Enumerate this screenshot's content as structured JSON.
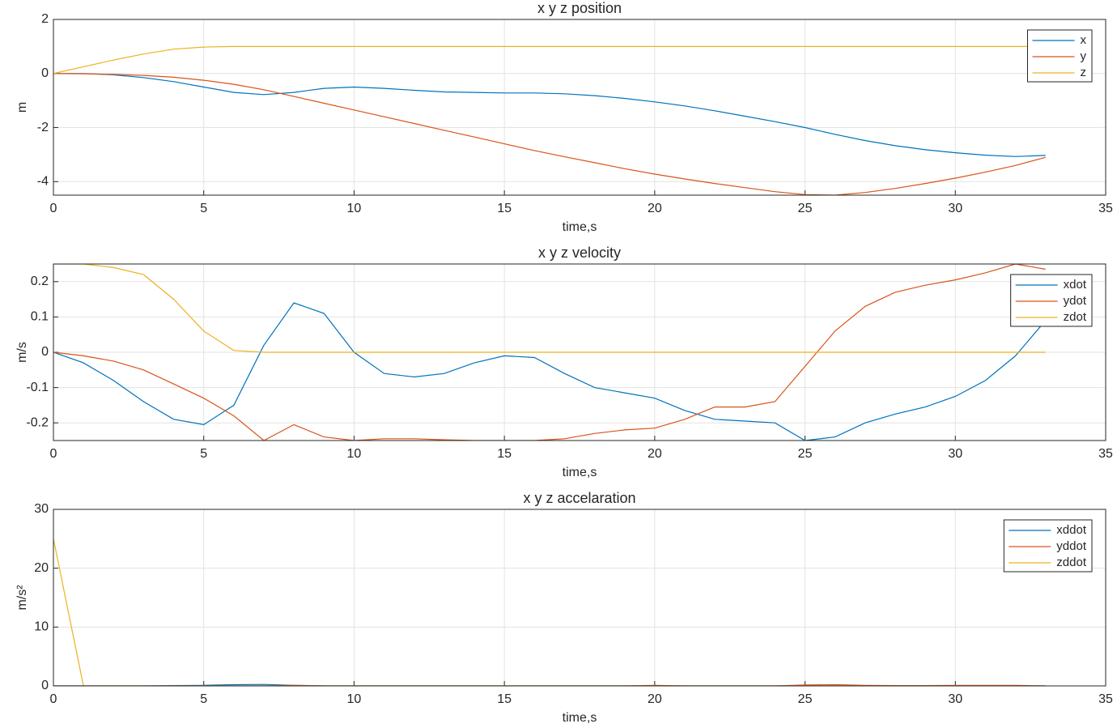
{
  "chart_data": [
    {
      "type": "line",
      "title": "x y z position",
      "xlabel": "time,s",
      "ylabel": "m",
      "x": [
        0,
        1,
        2,
        3,
        4,
        5,
        6,
        7,
        8,
        9,
        10,
        11,
        12,
        13,
        14,
        15,
        16,
        17,
        18,
        19,
        20,
        21,
        22,
        23,
        24,
        25,
        26,
        27,
        28,
        29,
        30,
        31,
        32,
        33
      ],
      "series": [
        {
          "name": "x",
          "color": "#0072BD",
          "values": [
            0,
            0,
            -0.05,
            -0.15,
            -0.3,
            -0.5,
            -0.7,
            -0.78,
            -0.7,
            -0.55,
            -0.5,
            -0.55,
            -0.62,
            -0.68,
            -0.7,
            -0.72,
            -0.72,
            -0.75,
            -0.82,
            -0.92,
            -1.05,
            -1.2,
            -1.38,
            -1.58,
            -1.78,
            -2.0,
            -2.25,
            -2.48,
            -2.67,
            -2.82,
            -2.93,
            -3.02,
            -3.07,
            -3.03
          ]
        },
        {
          "name": "y",
          "color": "#D95319",
          "values": [
            0,
            -0.01,
            -0.03,
            -0.07,
            -0.14,
            -0.25,
            -0.4,
            -0.6,
            -0.85,
            -1.1,
            -1.35,
            -1.6,
            -1.85,
            -2.1,
            -2.35,
            -2.6,
            -2.85,
            -3.08,
            -3.3,
            -3.52,
            -3.72,
            -3.9,
            -4.07,
            -4.22,
            -4.37,
            -4.48,
            -4.5,
            -4.4,
            -4.25,
            -4.07,
            -3.87,
            -3.65,
            -3.4,
            -3.1
          ]
        },
        {
          "name": "z",
          "color": "#EDB120",
          "values": [
            0,
            0.25,
            0.5,
            0.72,
            0.9,
            0.98,
            1,
            1,
            1,
            1,
            1,
            1,
            1,
            1,
            1,
            1,
            1,
            1,
            1,
            1,
            1,
            1,
            1,
            1,
            1,
            1,
            1,
            1,
            1,
            1,
            1,
            1,
            1,
            1
          ]
        }
      ],
      "xlim": [
        0,
        35
      ],
      "xticks": [
        0,
        5,
        10,
        15,
        20,
        25,
        30,
        35
      ],
      "ylim": [
        -4.5,
        2
      ],
      "yticks": [
        -4,
        -2,
        0,
        2
      ],
      "grid": true,
      "legend": "top-right"
    },
    {
      "type": "line",
      "title": "x y z velocity",
      "xlabel": "time,s",
      "ylabel": "m/s",
      "x": [
        0,
        1,
        2,
        3,
        4,
        5,
        6,
        7,
        8,
        9,
        10,
        11,
        12,
        13,
        14,
        15,
        16,
        17,
        18,
        19,
        20,
        21,
        22,
        23,
        24,
        25,
        26,
        27,
        28,
        29,
        30,
        31,
        32,
        33
      ],
      "series": [
        {
          "name": "xdot",
          "color": "#0072BD",
          "values": [
            0,
            -0.03,
            -0.08,
            -0.14,
            -0.19,
            -0.205,
            -0.15,
            0.02,
            0.14,
            0.11,
            0,
            -0.06,
            -0.07,
            -0.06,
            -0.03,
            -0.01,
            -0.015,
            -0.06,
            -0.1,
            -0.115,
            -0.13,
            -0.165,
            -0.19,
            -0.195,
            -0.2,
            -0.25,
            -0.24,
            -0.2,
            -0.175,
            -0.155,
            -0.125,
            -0.08,
            -0.01,
            0.09
          ]
        },
        {
          "name": "ydot",
          "color": "#D95319",
          "values": [
            0,
            -0.01,
            -0.025,
            -0.05,
            -0.09,
            -0.13,
            -0.18,
            -0.25,
            -0.205,
            -0.24,
            -0.25,
            -0.245,
            -0.245,
            -0.248,
            -0.25,
            -0.25,
            -0.25,
            -0.245,
            -0.23,
            -0.22,
            -0.215,
            -0.19,
            -0.155,
            -0.155,
            -0.14,
            -0.04,
            0.06,
            0.13,
            0.17,
            0.19,
            0.205,
            0.225,
            0.25,
            0.235
          ]
        },
        {
          "name": "zdot",
          "color": "#EDB120",
          "values": [
            0.25,
            0.25,
            0.24,
            0.22,
            0.15,
            0.06,
            0.005,
            0,
            0,
            0,
            0,
            0,
            0,
            0,
            0,
            0,
            0,
            0,
            0,
            0,
            0,
            0,
            0,
            0,
            0,
            0,
            0,
            0,
            0,
            0,
            0,
            0,
            0,
            0
          ]
        }
      ],
      "xlim": [
        0,
        35
      ],
      "xticks": [
        0,
        5,
        10,
        15,
        20,
        25,
        30,
        35
      ],
      "ylim": [
        -0.25,
        0.25
      ],
      "yticks": [
        -0.2,
        -0.1,
        0,
        0.1,
        0.2
      ],
      "grid": true,
      "legend": "top-right"
    },
    {
      "type": "line",
      "title": "x y z accelaration",
      "xlabel": "time,s",
      "ylabel": "m/s²",
      "x": [
        0,
        1,
        2,
        3,
        4,
        5,
        6,
        7,
        8,
        9,
        10,
        11,
        12,
        13,
        14,
        15,
        16,
        17,
        18,
        19,
        20,
        21,
        22,
        23,
        24,
        25,
        26,
        27,
        28,
        29,
        30,
        31,
        32,
        33
      ],
      "series": [
        {
          "name": "xddot",
          "color": "#0072BD",
          "values": [
            0,
            0,
            0,
            0,
            0.05,
            0.1,
            0.2,
            0.25,
            0.1,
            0,
            0,
            0,
            0,
            0,
            0,
            0,
            0,
            0,
            0,
            0,
            0,
            0,
            0,
            0,
            0,
            0,
            0,
            0,
            0,
            0,
            0,
            0,
            0,
            0
          ]
        },
        {
          "name": "yddot",
          "color": "#D95319",
          "values": [
            0,
            0,
            0,
            0,
            0,
            0,
            0,
            0,
            0.1,
            0,
            0,
            0,
            0,
            0,
            0,
            0,
            0,
            0,
            0,
            0,
            0.1,
            0,
            0,
            0,
            0,
            0.15,
            0.2,
            0.1,
            0.05,
            0.05,
            0.1,
            0.1,
            0.1,
            0
          ]
        },
        {
          "name": "zddot",
          "color": "#EDB120",
          "values": [
            25,
            0,
            0,
            0,
            0,
            0,
            0,
            0,
            0,
            0,
            0,
            0,
            0,
            0,
            0,
            0,
            0,
            0,
            0,
            0,
            0,
            0,
            0,
            0,
            0,
            0,
            0,
            0,
            0,
            0,
            0,
            0,
            0,
            0
          ]
        }
      ],
      "xlim": [
        0,
        35
      ],
      "xticks": [
        0,
        5,
        10,
        15,
        20,
        25,
        30,
        35
      ],
      "ylim": [
        0,
        30
      ],
      "yticks": [
        0,
        10,
        20,
        30
      ],
      "grid": true,
      "legend": "top-right"
    }
  ]
}
